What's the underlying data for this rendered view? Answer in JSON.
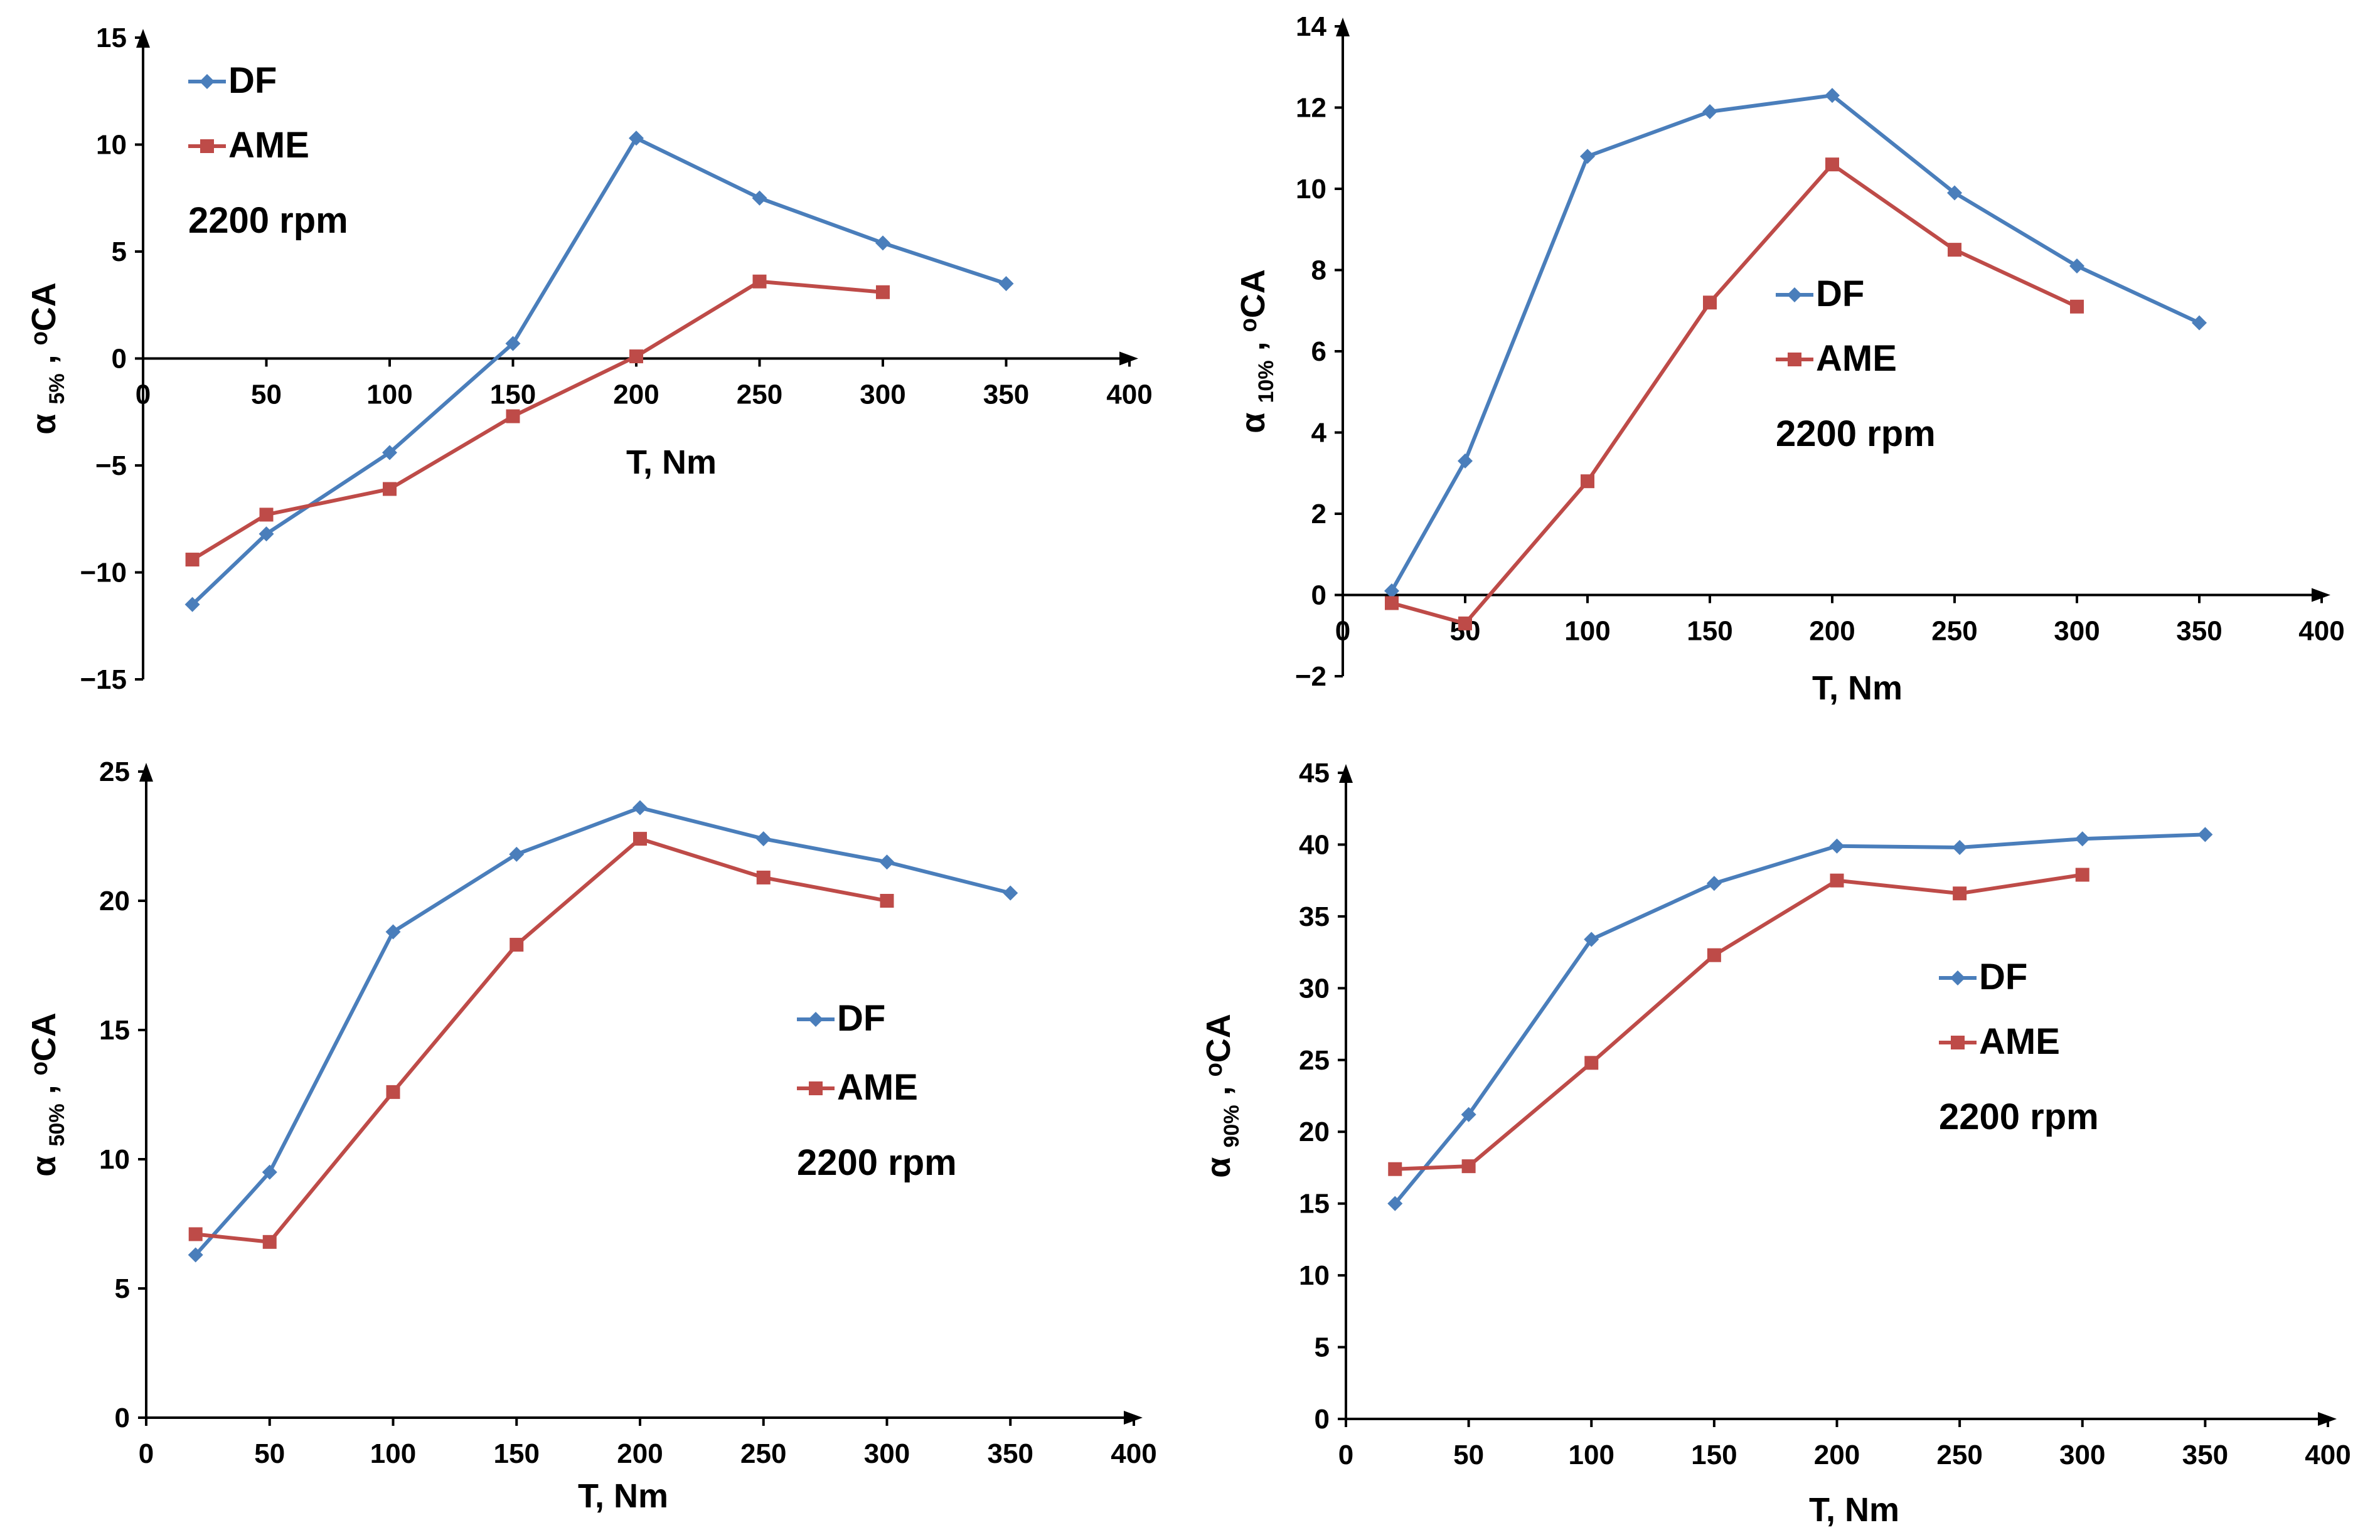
{
  "colors": {
    "df": "#4A7EBB",
    "ame": "#BE4B48",
    "axis": "#000000"
  },
  "chart_data": [
    {
      "type": "line",
      "ylabel_main": "α",
      "ylabel_sub": "5%",
      "ylabel_unit": ", ᵒCA",
      "xlabel": "T, Nm",
      "xlim": [
        0,
        400
      ],
      "ylim": [
        -15,
        15
      ],
      "xticks": [
        "0",
        "50",
        "100",
        "150",
        "200",
        "250",
        "300",
        "350",
        "400"
      ],
      "yticks": [
        "−15",
        "−10",
        "−5",
        "0",
        "5",
        "10",
        "15"
      ],
      "legend": {
        "position": "top-left",
        "speed": "2200 rpm"
      },
      "series": [
        {
          "name": "DF",
          "x": [
            20,
            50,
            100,
            150,
            200,
            250,
            300,
            350
          ],
          "y": [
            -11.5,
            -8.2,
            -4.4,
            0.7,
            10.3,
            7.5,
            5.4,
            3.5
          ]
        },
        {
          "name": "AME",
          "x": [
            20,
            50,
            100,
            150,
            200,
            250,
            300
          ],
          "y": [
            -9.4,
            -7.3,
            -6.1,
            -2.7,
            0.1,
            3.6,
            3.1
          ]
        }
      ]
    },
    {
      "type": "line",
      "ylabel_main": "α",
      "ylabel_sub": "10%",
      "ylabel_unit": ", ᵒCA",
      "xlabel": "T, Nm",
      "xlim": [
        0,
        400
      ],
      "ylim": [
        -2,
        14
      ],
      "xticks": [
        "0",
        "50",
        "100",
        "150",
        "200",
        "250",
        "300",
        "350",
        "400"
      ],
      "yticks": [
        "−2",
        "0",
        "2",
        "4",
        "6",
        "8",
        "10",
        "12",
        "14"
      ],
      "legend": {
        "position": "middle",
        "speed": "2200 rpm"
      },
      "series": [
        {
          "name": "DF",
          "x": [
            20,
            50,
            100,
            150,
            200,
            250,
            300,
            350
          ],
          "y": [
            0.1,
            3.3,
            10.8,
            11.9,
            12.3,
            9.9,
            8.1,
            6.7
          ]
        },
        {
          "name": "AME",
          "x": [
            20,
            50,
            100,
            150,
            200,
            250,
            300
          ],
          "y": [
            -0.2,
            -0.7,
            2.8,
            7.2,
            10.6,
            8.5,
            7.1
          ]
        }
      ]
    },
    {
      "type": "line",
      "ylabel_main": "α",
      "ylabel_sub": "50%",
      "ylabel_unit": ", ᵒCA",
      "xlabel": "T, Nm",
      "xlim": [
        0,
        400
      ],
      "ylim": [
        0,
        25
      ],
      "xticks": [
        "0",
        "50",
        "100",
        "150",
        "200",
        "250",
        "300",
        "350",
        "400"
      ],
      "yticks": [
        "0",
        "5",
        "10",
        "15",
        "20",
        "25"
      ],
      "legend": {
        "position": "middle-right",
        "speed": "2200 rpm"
      },
      "series": [
        {
          "name": "DF",
          "x": [
            20,
            50,
            100,
            150,
            200,
            250,
            300,
            350
          ],
          "y": [
            6.3,
            9.5,
            18.8,
            21.8,
            23.6,
            22.4,
            21.5,
            20.3
          ]
        },
        {
          "name": "AME",
          "x": [
            20,
            50,
            100,
            150,
            200,
            250,
            300
          ],
          "y": [
            7.1,
            6.8,
            12.6,
            18.3,
            22.4,
            20.9,
            20.0
          ]
        }
      ]
    },
    {
      "type": "line",
      "ylabel_main": "α",
      "ylabel_sub": "90%",
      "ylabel_unit": ", ᵒCA",
      "xlabel": "T, Nm",
      "xlim": [
        0,
        400
      ],
      "ylim": [
        0,
        45
      ],
      "xticks": [
        "0",
        "50",
        "100",
        "150",
        "200",
        "250",
        "300",
        "350",
        "400"
      ],
      "yticks": [
        "0",
        "5",
        "10",
        "15",
        "20",
        "25",
        "30",
        "35",
        "40",
        "45"
      ],
      "legend": {
        "position": "middle-right",
        "speed": "2200 rpm"
      },
      "series": [
        {
          "name": "DF",
          "x": [
            20,
            50,
            100,
            150,
            200,
            250,
            300,
            350
          ],
          "y": [
            15.0,
            21.2,
            33.4,
            37.3,
            39.9,
            39.8,
            40.4,
            40.7
          ]
        },
        {
          "name": "AME",
          "x": [
            20,
            50,
            100,
            150,
            200,
            250,
            300
          ],
          "y": [
            17.4,
            17.6,
            24.8,
            32.3,
            37.5,
            36.6,
            37.9
          ]
        }
      ]
    }
  ]
}
